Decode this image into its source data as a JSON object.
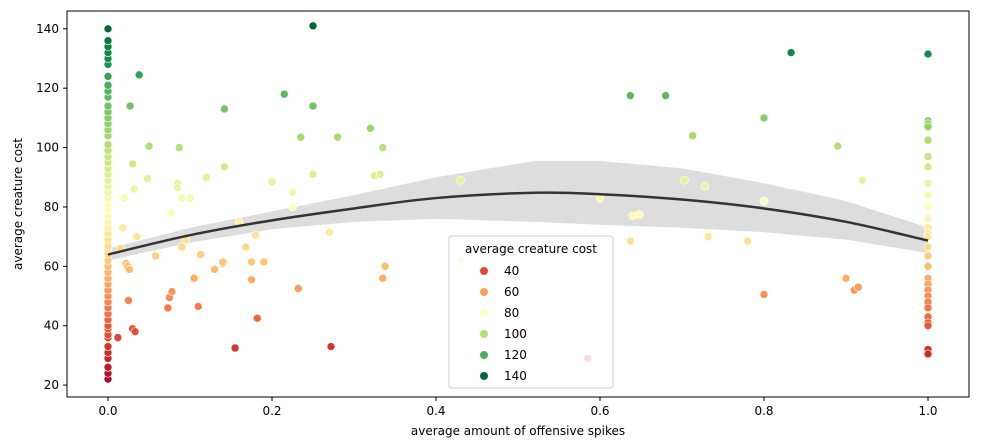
{
  "chart_data": {
    "type": "scatter",
    "xlabel": "average amount of offensive spikes",
    "ylabel": "average creature cost",
    "xlim": [
      -0.05,
      1.05
    ],
    "ylim": [
      16,
      146
    ],
    "x_ticks": [
      0.0,
      0.2,
      0.4,
      0.6,
      0.8,
      1.0
    ],
    "x_tick_labels": [
      "0.0",
      "0.2",
      "0.4",
      "0.6",
      "0.8",
      "1.0"
    ],
    "y_ticks": [
      20,
      40,
      60,
      80,
      100,
      120,
      140
    ],
    "y_tick_labels": [
      "20",
      "40",
      "60",
      "80",
      "100",
      "120",
      "140"
    ],
    "grid": false,
    "colormap": "RdYlGn",
    "legend": {
      "title": "average creature cost",
      "placement": "lower-center",
      "entries": [
        {
          "label": "40",
          "color": "#e34933"
        },
        {
          "label": "60",
          "color": "#fba05b"
        },
        {
          "label": "80",
          "color": "#fffebe"
        },
        {
          "label": "100",
          "color": "#b3de76"
        },
        {
          "label": "120",
          "color": "#4bb05c"
        },
        {
          "label": "140",
          "color": "#006837"
        }
      ]
    },
    "trend_line": {
      "type": "quadratic",
      "color": "#333333",
      "points": [
        [
          0.0,
          64
        ],
        [
          0.1,
          70.5
        ],
        [
          0.2,
          75.5
        ],
        [
          0.3,
          79.5
        ],
        [
          0.4,
          83
        ],
        [
          0.52,
          84.8
        ],
        [
          0.6,
          84.3
        ],
        [
          0.7,
          82.5
        ],
        [
          0.8,
          79.5
        ],
        [
          0.9,
          75
        ],
        [
          1.0,
          68.7
        ]
      ],
      "ci_upper": [
        [
          0.0,
          66
        ],
        [
          0.1,
          73
        ],
        [
          0.2,
          78.5
        ],
        [
          0.3,
          84
        ],
        [
          0.4,
          90
        ],
        [
          0.52,
          95.5
        ],
        [
          0.6,
          95.5
        ],
        [
          0.7,
          93
        ],
        [
          0.8,
          88
        ],
        [
          0.9,
          82
        ],
        [
          1.0,
          73
        ]
      ],
      "ci_lower": [
        [
          0.0,
          62
        ],
        [
          0.1,
          68
        ],
        [
          0.2,
          72.5
        ],
        [
          0.3,
          75
        ],
        [
          0.4,
          76
        ],
        [
          0.52,
          75
        ],
        [
          0.6,
          74
        ],
        [
          0.7,
          73
        ],
        [
          0.8,
          71.5
        ],
        [
          0.9,
          69
        ],
        [
          1.0,
          64.5
        ]
      ],
      "ci_color": "#dddddd"
    },
    "points": [
      [
        0,
        22
      ],
      [
        0,
        24
      ],
      [
        0,
        26
      ],
      [
        0,
        29
      ],
      [
        0,
        31
      ],
      [
        0,
        33
      ],
      [
        0,
        36
      ],
      [
        0,
        37
      ],
      [
        0,
        39
      ],
      [
        0,
        40
      ],
      [
        0,
        42
      ],
      [
        0,
        44
      ],
      [
        0,
        46
      ],
      [
        0,
        48
      ],
      [
        0,
        50
      ],
      [
        0,
        52
      ],
      [
        0,
        54
      ],
      [
        0,
        56
      ],
      [
        0,
        58
      ],
      [
        0,
        60
      ],
      [
        0,
        62
      ],
      [
        0,
        64
      ],
      [
        0,
        66
      ],
      [
        0,
        67
      ],
      [
        0,
        69
      ],
      [
        0,
        71
      ],
      [
        0,
        73
      ],
      [
        0,
        75
      ],
      [
        0,
        77
      ],
      [
        0,
        79
      ],
      [
        0,
        81
      ],
      [
        0,
        83
      ],
      [
        0,
        85
      ],
      [
        0,
        87
      ],
      [
        0,
        89
      ],
      [
        0,
        91
      ],
      [
        0,
        93
      ],
      [
        0,
        95
      ],
      [
        0,
        97
      ],
      [
        0,
        99
      ],
      [
        0,
        101
      ],
      [
        0,
        104
      ],
      [
        0,
        106
      ],
      [
        0,
        108
      ],
      [
        0,
        110
      ],
      [
        0,
        112
      ],
      [
        0,
        114
      ],
      [
        0,
        117
      ],
      [
        0,
        119
      ],
      [
        0,
        121
      ],
      [
        0,
        124
      ],
      [
        0,
        128
      ],
      [
        0,
        130
      ],
      [
        0,
        132
      ],
      [
        0,
        134
      ],
      [
        0,
        136
      ],
      [
        0,
        140
      ],
      [
        0.012,
        36
      ],
      [
        0.015,
        66
      ],
      [
        0.018,
        73
      ],
      [
        0.02,
        83
      ],
      [
        0.022,
        61
      ],
      [
        0.024,
        60
      ],
      [
        0.025,
        48.5
      ],
      [
        0.026,
        59
      ],
      [
        0.027,
        114
      ],
      [
        0.03,
        94.5
      ],
      [
        0.032,
        86
      ],
      [
        0.03,
        39
      ],
      [
        0.033,
        38
      ],
      [
        0.035,
        70
      ],
      [
        0.038,
        124.5
      ],
      [
        0.048,
        89.5
      ],
      [
        0.05,
        100.5
      ],
      [
        0.058,
        63.5
      ],
      [
        0.073,
        46
      ],
      [
        0.075,
        49.5
      ],
      [
        0.077,
        78
      ],
      [
        0.078,
        51.5
      ],
      [
        0.085,
        88
      ],
      [
        0.085,
        86.5
      ],
      [
        0.087,
        100
      ],
      [
        0.09,
        66.5
      ],
      [
        0.09,
        83
      ],
      [
        0.095,
        69
      ],
      [
        0.1,
        83
      ],
      [
        0.105,
        56
      ],
      [
        0.11,
        46.5
      ],
      [
        0.113,
        64
      ],
      [
        0.12,
        90
      ],
      [
        0.13,
        59
      ],
      [
        0.14,
        61
      ],
      [
        0.14,
        61.5
      ],
      [
        0.142,
        113
      ],
      [
        0.142,
        93.5
      ],
      [
        0.155,
        32.5
      ],
      [
        0.16,
        75
      ],
      [
        0.168,
        66.5
      ],
      [
        0.175,
        61.5
      ],
      [
        0.175,
        55.5
      ],
      [
        0.18,
        70.5
      ],
      [
        0.182,
        42.5
      ],
      [
        0.19,
        61.5
      ],
      [
        0.2,
        88.5
      ],
      [
        0.215,
        118
      ],
      [
        0.225,
        85
      ],
      [
        0.225,
        80
      ],
      [
        0.232,
        52.5
      ],
      [
        0.235,
        103.5
      ],
      [
        0.25,
        141
      ],
      [
        0.25,
        114
      ],
      [
        0.25,
        91
      ],
      [
        0.27,
        71.5
      ],
      [
        0.272,
        33
      ],
      [
        0.28,
        103.5
      ],
      [
        0.32,
        106.5
      ],
      [
        0.325,
        90.5
      ],
      [
        0.332,
        91
      ],
      [
        0.335,
        100
      ],
      [
        0.335,
        56
      ],
      [
        0.338,
        60
      ],
      [
        0.43,
        89
      ],
      [
        0.43,
        62
      ],
      [
        0.5,
        37.5
      ],
      [
        0.585,
        29
      ],
      [
        0.6,
        83
      ],
      [
        0.637,
        117.5
      ],
      [
        0.637,
        68.5
      ],
      [
        0.64,
        77
      ],
      [
        0.648,
        77.5
      ],
      [
        0.68,
        117.5
      ],
      [
        0.703,
        89
      ],
      [
        0.713,
        104
      ],
      [
        0.728,
        87
      ],
      [
        0.732,
        70
      ],
      [
        0.78,
        68.5
      ],
      [
        0.8,
        110
      ],
      [
        0.8,
        50.5
      ],
      [
        0.8,
        82
      ],
      [
        0.833,
        132
      ],
      [
        0.89,
        100.5
      ],
      [
        0.9,
        56
      ],
      [
        0.91,
        52
      ],
      [
        0.915,
        53
      ],
      [
        0.92,
        89
      ],
      [
        1.0,
        131.5
      ],
      [
        1.0,
        109
      ],
      [
        1.0,
        108
      ],
      [
        1.0,
        107
      ],
      [
        1.0,
        102.5
      ],
      [
        1.0,
        97
      ],
      [
        1.0,
        93.5
      ],
      [
        1.0,
        88
      ],
      [
        1.0,
        84
      ],
      [
        1.0,
        80
      ],
      [
        1.0,
        76
      ],
      [
        1.0,
        73
      ],
      [
        1.0,
        71
      ],
      [
        1.0,
        70
      ],
      [
        1.0,
        66.5
      ],
      [
        1.0,
        63.5
      ],
      [
        1.0,
        60
      ],
      [
        1.0,
        56
      ],
      [
        1.0,
        54
      ],
      [
        1.0,
        52
      ],
      [
        1.0,
        50
      ],
      [
        1.0,
        48
      ],
      [
        1.0,
        46
      ],
      [
        1.0,
        43
      ],
      [
        1.0,
        41
      ],
      [
        1.0,
        40
      ],
      [
        1.0,
        32
      ],
      [
        1.0,
        30.5
      ]
    ]
  }
}
